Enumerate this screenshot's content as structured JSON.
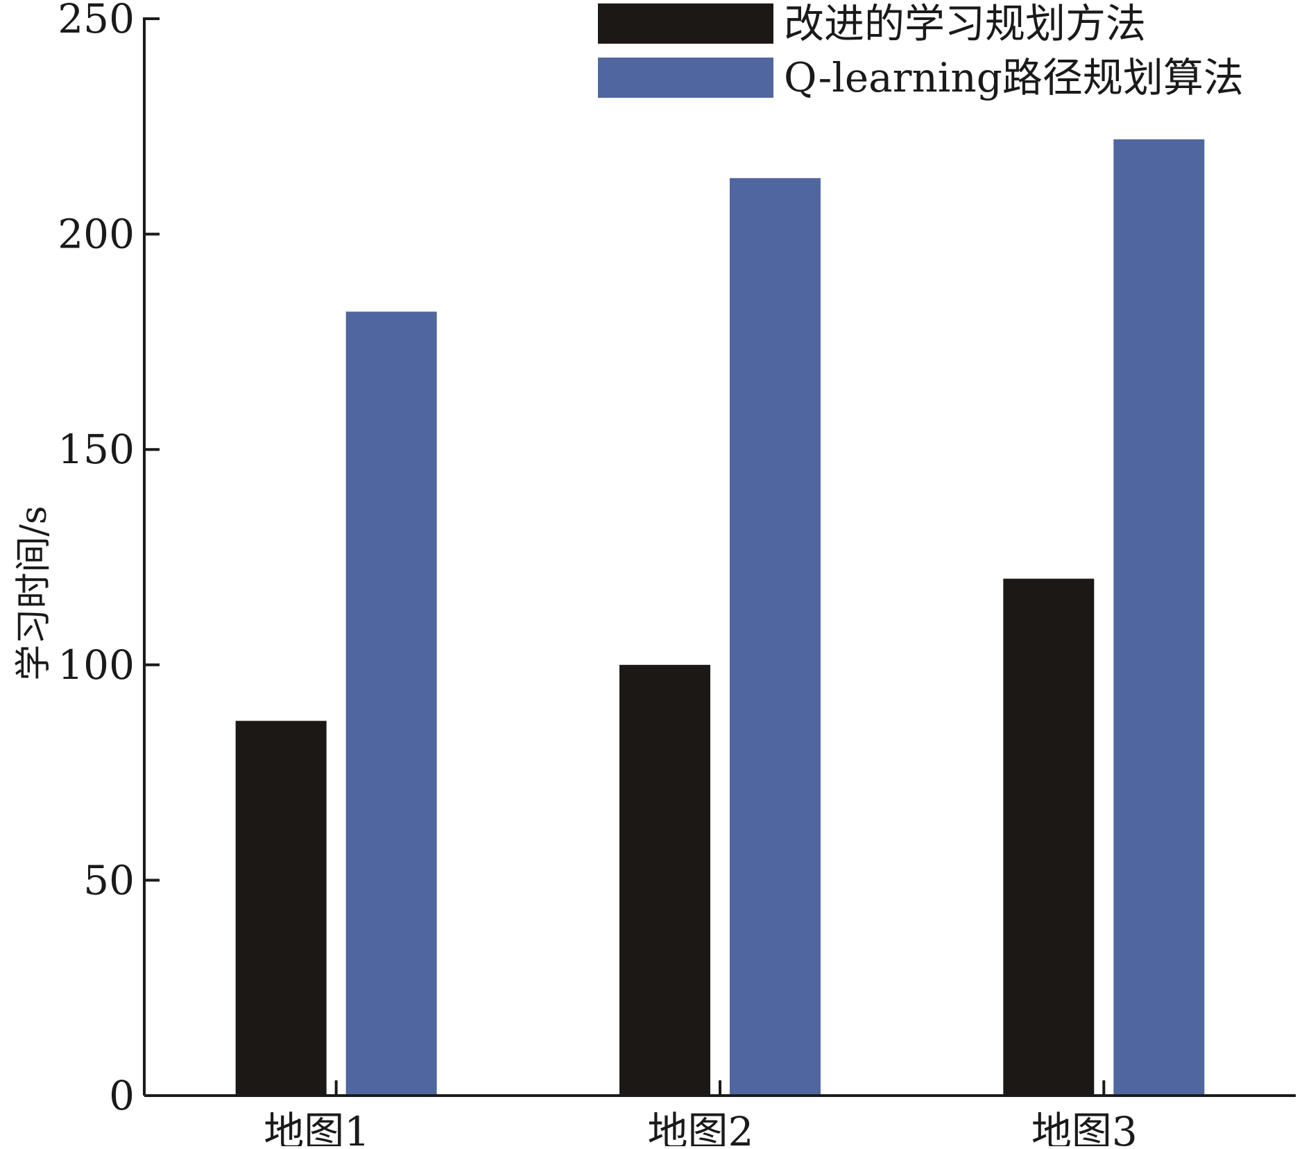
{
  "chart_data": {
    "type": "bar",
    "title": "",
    "xlabel": "",
    "ylabel": "学习时间/s",
    "categories": [
      "地图1",
      "地图2",
      "地图3"
    ],
    "series": [
      {
        "name": "改进的学习规划方法",
        "color": "#1b1815",
        "values": [
          87,
          100,
          120
        ]
      },
      {
        "name": "Q-learning路径规划算法",
        "color": "#5066a0",
        "values": [
          182,
          213,
          222
        ]
      }
    ],
    "ylim": [
      0,
      250
    ],
    "yticks": [
      0,
      50,
      100,
      150,
      200,
      250
    ],
    "grid": false,
    "legend_position": "top-right"
  }
}
